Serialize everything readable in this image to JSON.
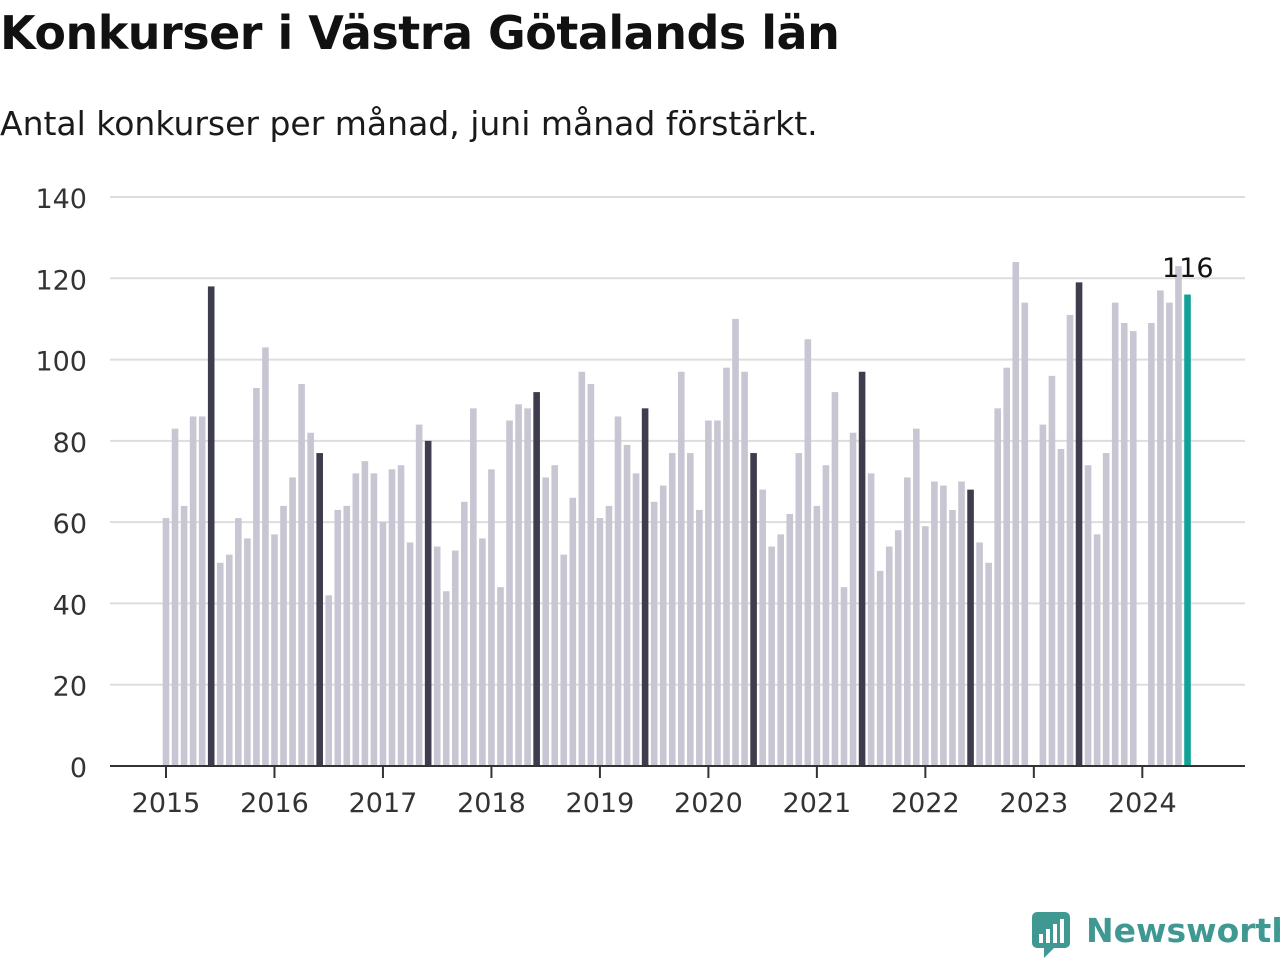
{
  "header": {
    "title": "Konkurser i Västra Götalands län",
    "subtitle": "Antal konkurser per månad, juni månad förstärkt."
  },
  "logo": {
    "text": "Newsworthy",
    "icon": "chart-bars-icon"
  },
  "colors": {
    "bar_default": "#c7c6d2",
    "bar_june": "#3e3d4d",
    "bar_latest": "#11a196",
    "grid": "#dddddd",
    "axis": "#333333",
    "brand": "#3f9992"
  },
  "chart_data": {
    "type": "bar",
    "start_month": "2015-01",
    "values": [
      61,
      83,
      64,
      86,
      86,
      118,
      50,
      52,
      61,
      56,
      93,
      103,
      57,
      64,
      71,
      94,
      82,
      77,
      42,
      63,
      64,
      72,
      75,
      72,
      60,
      73,
      74,
      55,
      84,
      80,
      54,
      43,
      53,
      65,
      88,
      56,
      73,
      44,
      85,
      89,
      88,
      92,
      71,
      74,
      52,
      66,
      97,
      94,
      61,
      64,
      86,
      79,
      72,
      88,
      65,
      69,
      77,
      97,
      77,
      63,
      85,
      85,
      98,
      110,
      97,
      77,
      68,
      54,
      57,
      62,
      77,
      105,
      64,
      74,
      92,
      44,
      82,
      97,
      72,
      48,
      54,
      58,
      71,
      83,
      59,
      70,
      69,
      63,
      70,
      68,
      55,
      50,
      88,
      98,
      124,
      114,
      null,
      84,
      96,
      78,
      111,
      119,
      74,
      57,
      77,
      114,
      109,
      107,
      null,
      109,
      117,
      114,
      123,
      116
    ],
    "highlight_month": "June",
    "x_ticks": [
      "2015",
      "2016",
      "2017",
      "2018",
      "2019",
      "2020",
      "2021",
      "2022",
      "2023",
      "2024"
    ],
    "y_ticks": [
      0,
      20,
      40,
      60,
      80,
      100,
      120,
      140
    ],
    "ylim": [
      0,
      140
    ],
    "latest_label": "116",
    "grid": true,
    "legend": "none"
  }
}
